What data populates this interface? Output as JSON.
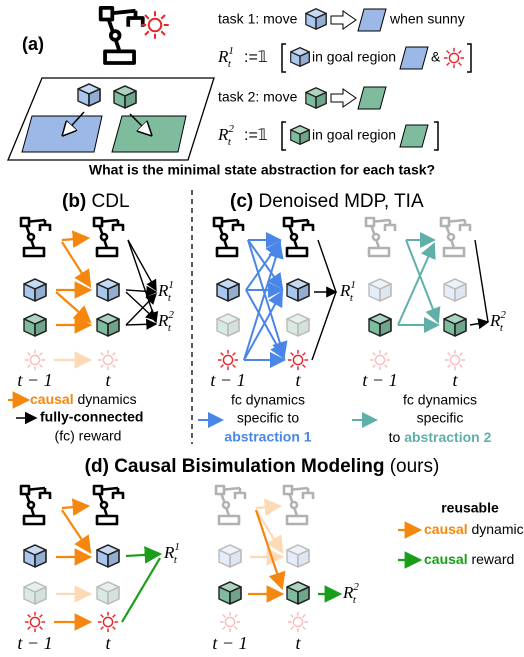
{
  "panel_a": {
    "label": "(a)",
    "task_1": {
      "prefix": "task 1: move",
      "suffix": "when sunny"
    },
    "reward_1": {
      "symbol": "R",
      "sup": "1",
      "sub": "t",
      "define": ":=𝟙",
      "condition": "in goal region",
      "and": "&"
    },
    "task_2": {
      "prefix": "task 2: move"
    },
    "reward_2": {
      "symbol": "R",
      "sup": "2",
      "sub": "t",
      "define": ":=𝟙",
      "condition": "in goal region"
    }
  },
  "question": "What is the minimal state abstraction for each task?",
  "panel_b": {
    "label": "(b)",
    "title": "CDL",
    "time": [
      "t − 1",
      "t"
    ],
    "rewards": [
      {
        "symbol": "R",
        "sup": "1",
        "sub": "t"
      },
      {
        "symbol": "R",
        "sup": "2",
        "sub": "t"
      }
    ],
    "legend": {
      "causal": "causal",
      "dynamics": "dynamics",
      "fc": "fully-connected",
      "reward": "(fc) reward"
    }
  },
  "panel_c": {
    "label": "(c)",
    "title": "Denoised MDP, TIA",
    "time": [
      "t − 1",
      "t"
    ],
    "rewards": [
      {
        "symbol": "R",
        "sup": "1",
        "sub": "t"
      },
      {
        "symbol": "R",
        "sup": "2",
        "sub": "t"
      }
    ],
    "legend_1": [
      "fc dynamics",
      "specific to",
      "abstraction 1"
    ],
    "legend_2": [
      "fc dynamics",
      "specific",
      "to",
      "abstraction 2"
    ]
  },
  "panel_d": {
    "label": "(d)",
    "title": "Causal Bisimulation Modeling",
    "note": "(ours)",
    "time": [
      "t − 1",
      "t"
    ],
    "rewards": [
      {
        "symbol": "R",
        "sup": "1",
        "sub": "t"
      },
      {
        "symbol": "R",
        "sup": "2",
        "sub": "t"
      }
    ],
    "legend": {
      "reusable": "reusable",
      "causal": "causal",
      "dynamics": "dynamics",
      "reward_causal": "causal",
      "reward": "reward"
    }
  }
}
